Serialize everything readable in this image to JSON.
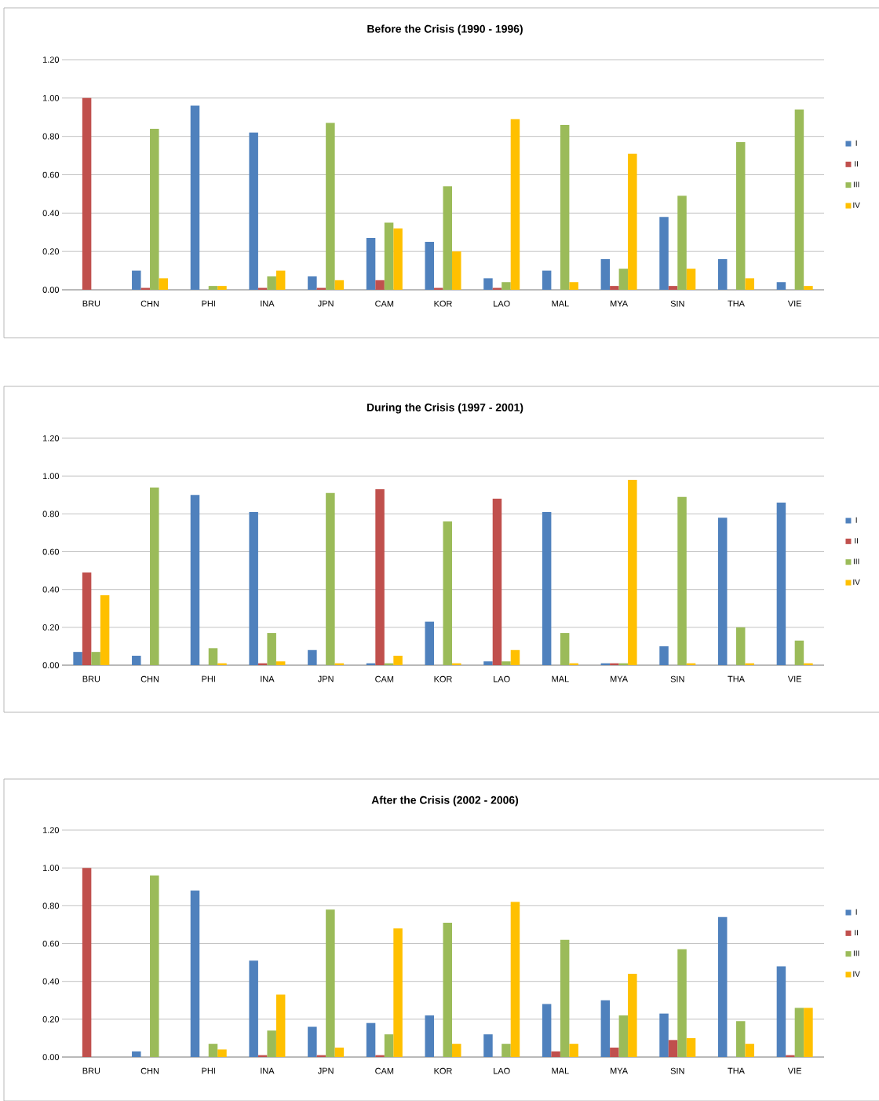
{
  "chart_data": [
    {
      "type": "bar",
      "title": "**Before the Crisis (1990 - 1996)**",
      "categories": [
        "BRU",
        "CHN",
        "PHI",
        "INA",
        "JPN",
        "CAM",
        "KOR",
        "LAO",
        "MAL",
        "MYA",
        "SIN",
        "THA",
        "VIE"
      ],
      "series": [
        {
          "name": "I",
          "color": "#4f81bd",
          "values": [
            0,
            0.1,
            0.96,
            0.82,
            0.07,
            0.27,
            0.25,
            0.06,
            0.1,
            0.16,
            0.38,
            0.16,
            0.04
          ]
        },
        {
          "name": "II",
          "color": "#c0504d",
          "values": [
            1.0,
            0.01,
            0,
            0.01,
            0.01,
            0.05,
            0.01,
            0.01,
            0,
            0.02,
            0.02,
            0,
            0
          ]
        },
        {
          "name": "III",
          "color": "#9bbb59",
          "values": [
            0,
            0.84,
            0.02,
            0.07,
            0.87,
            0.35,
            0.54,
            0.04,
            0.86,
            0.11,
            0.49,
            0.77,
            0.94
          ]
        },
        {
          "name": "IV",
          "color": "#ffc000",
          "values": [
            0,
            0.06,
            0.02,
            0.1,
            0.05,
            0.32,
            0.2,
            0.89,
            0.04,
            0.71,
            0.11,
            0.06,
            0.02
          ]
        }
      ],
      "ylim": [
        0,
        1.2
      ],
      "yticks": [
        {
          "value": 0,
          "label": "0.00"
        },
        {
          "value": 0.2,
          "label": "0.20"
        },
        {
          "value": 0.4,
          "label": "0.40"
        },
        {
          "value": 0.6,
          "label": "0.60"
        },
        {
          "value": 0.8,
          "label": "0.80"
        },
        {
          "value": 1.0,
          "label": "1.00"
        },
        {
          "value": 1.2,
          "label": "1.20"
        }
      ],
      "grid": "y",
      "legend": "right"
    },
    {
      "type": "bar",
      "title": "**During the Crisis (1997 - 2001)**",
      "categories": [
        "BRU",
        "CHN",
        "PHI",
        "INA",
        "JPN",
        "CAM",
        "KOR",
        "LAO",
        "MAL",
        "MYA",
        "SIN",
        "THA",
        "VIE"
      ],
      "series": [
        {
          "name": "I",
          "color": "#4f81bd",
          "values": [
            0.07,
            0.05,
            0.9,
            0.81,
            0.08,
            0.01,
            0.23,
            0.02,
            0.81,
            0.01,
            0.1,
            0.78,
            0.86
          ]
        },
        {
          "name": "II",
          "color": "#c0504d",
          "values": [
            0.49,
            0,
            0,
            0.01,
            0,
            0.93,
            0,
            0.88,
            0,
            0.01,
            0,
            0,
            0
          ]
        },
        {
          "name": "III",
          "color": "#9bbb59",
          "values": [
            0.07,
            0.94,
            0.09,
            0.17,
            0.91,
            0.01,
            0.76,
            0.02,
            0.17,
            0.01,
            0.89,
            0.2,
            0.13
          ]
        },
        {
          "name": "IV",
          "color": "#ffc000",
          "values": [
            0.37,
            0,
            0.01,
            0.02,
            0.01,
            0.05,
            0.01,
            0.08,
            0.01,
            0.98,
            0.01,
            0.01,
            0.01
          ]
        }
      ],
      "ylim": [
        0,
        1.2
      ],
      "yticks": [
        {
          "value": 0,
          "label": "0.00"
        },
        {
          "value": 0.2,
          "label": "0.20"
        },
        {
          "value": 0.4,
          "label": "0.40"
        },
        {
          "value": 0.6,
          "label": "0.60"
        },
        {
          "value": 0.8,
          "label": "0.80"
        },
        {
          "value": 1.0,
          "label": "1.00"
        },
        {
          "value": 1.2,
          "label": "1.20"
        }
      ],
      "grid": "y",
      "legend": "right"
    },
    {
      "type": "bar",
      "title": "**After the Crisis (2002 - 2006)**",
      "categories": [
        "BRU",
        "CHN",
        "PHI",
        "INA",
        "JPN",
        "CAM",
        "KOR",
        "LAO",
        "MAL",
        "MYA",
        "SIN",
        "THA",
        "VIE"
      ],
      "series": [
        {
          "name": "I",
          "color": "#4f81bd",
          "values": [
            0,
            0.03,
            0.88,
            0.51,
            0.16,
            0.18,
            0.22,
            0.12,
            0.28,
            0.3,
            0.23,
            0.74,
            0.48
          ]
        },
        {
          "name": "II",
          "color": "#c0504d",
          "values": [
            1.0,
            0,
            0,
            0.01,
            0.01,
            0.01,
            0,
            0,
            0.03,
            0.05,
            0.09,
            0,
            0.01
          ]
        },
        {
          "name": "III",
          "color": "#9bbb59",
          "values": [
            0,
            0.96,
            0.07,
            0.14,
            0.78,
            0.12,
            0.71,
            0.07,
            0.62,
            0.22,
            0.57,
            0.19,
            0.26
          ]
        },
        {
          "name": "IV",
          "color": "#ffc000",
          "values": [
            0,
            0,
            0.04,
            0.33,
            0.05,
            0.68,
            0.07,
            0.82,
            0.07,
            0.44,
            0.1,
            0.07,
            0.26
          ]
        }
      ],
      "ylim": [
        0,
        1.2
      ],
      "yticks": [
        {
          "value": 0,
          "label": "0.00"
        },
        {
          "value": 0.2,
          "label": "0.20"
        },
        {
          "value": 0.4,
          "label": "0.40"
        },
        {
          "value": 0.6,
          "label": "0.60"
        },
        {
          "value": 0.8,
          "label": "0.80"
        },
        {
          "value": 1.0,
          "label": "1.00"
        },
        {
          "value": 1.2,
          "label": "1.20"
        }
      ],
      "grid": "y",
      "legend": "right"
    }
  ]
}
